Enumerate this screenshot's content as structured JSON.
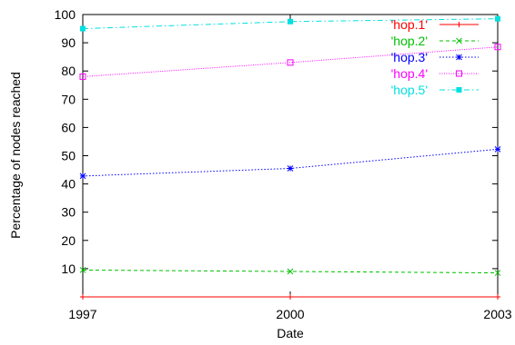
{
  "chart_data": {
    "type": "line",
    "xlabel": "Date",
    "ylabel": "Percentage of nodes reached",
    "x": [
      1997,
      2000,
      2003
    ],
    "xticks": [
      "1997",
      "2000",
      "2003"
    ],
    "xlim": [
      1997,
      2003
    ],
    "yticks": [
      "10",
      "20",
      "30",
      "40",
      "50",
      "60",
      "70",
      "80",
      "90",
      "100"
    ],
    "ylim": [
      0,
      100
    ],
    "grid": false,
    "legend_position": "top-right",
    "series": [
      {
        "name": "'hop.1'",
        "color": "#ff0000",
        "marker": "plus",
        "dash": "solid",
        "values": [
          0,
          0,
          0
        ]
      },
      {
        "name": "'hop.2'",
        "color": "#00c000",
        "marker": "cross",
        "dash": "dashed",
        "values": [
          9.5,
          9,
          8.5
        ]
      },
      {
        "name": "'hop.3'",
        "color": "#0000ff",
        "marker": "star",
        "dash": "dotted",
        "values": [
          42.8,
          45.5,
          52.3
        ]
      },
      {
        "name": "'hop.4'",
        "color": "#ff00ff",
        "marker": "box",
        "dash": "dotted-fine",
        "values": [
          78,
          83,
          88.5
        ]
      },
      {
        "name": "'hop.5'",
        "color": "#00e0e0",
        "marker": "filled-box",
        "dash": "dash-dot",
        "values": [
          95,
          97.5,
          98.5
        ]
      }
    ]
  }
}
